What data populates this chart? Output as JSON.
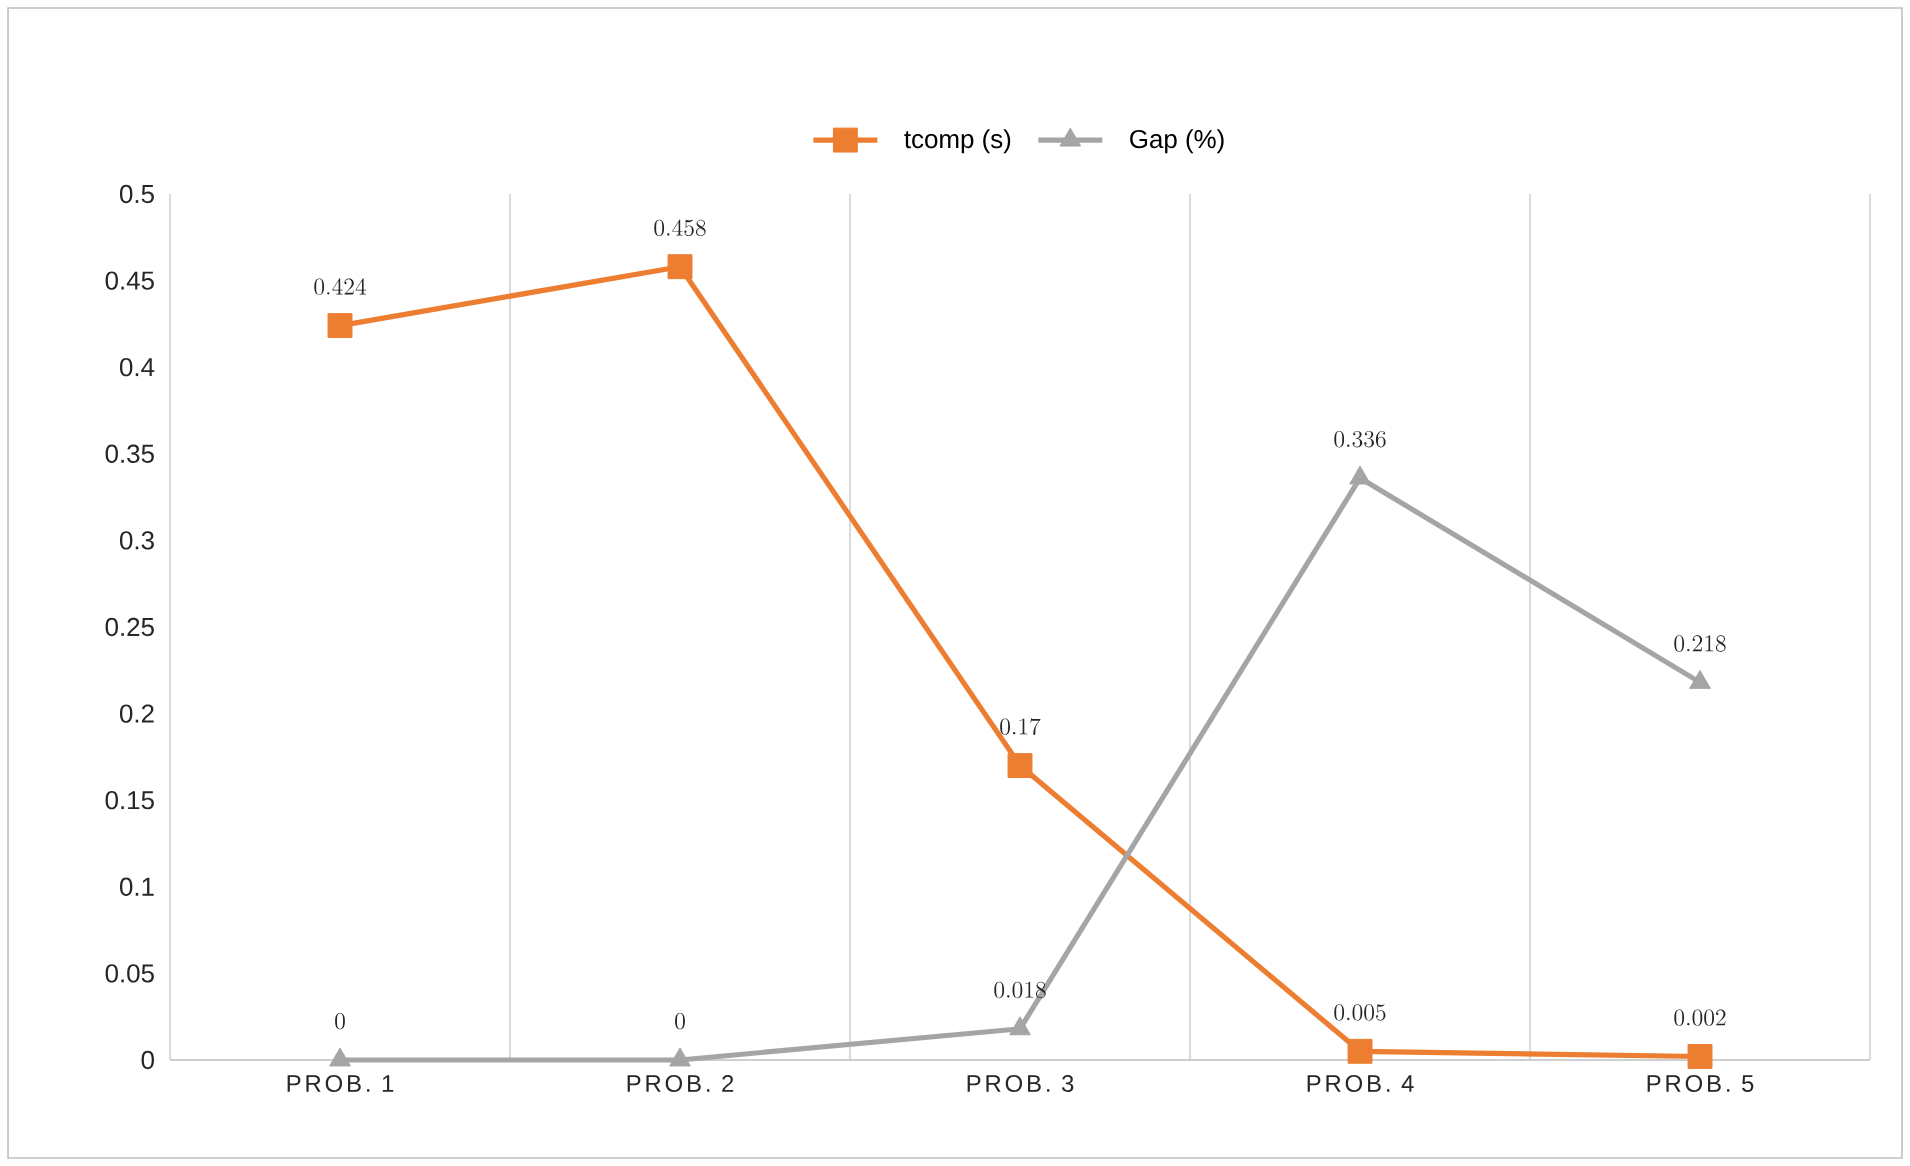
{
  "chart_data": {
    "type": "line",
    "categories": [
      "PROB. 1",
      "PROB. 2",
      "PROB. 3",
      "PROB. 4",
      "PROB. 5"
    ],
    "series": [
      {
        "name": "tcomp (s)",
        "color": "#ed7d31",
        "marker": "square",
        "values": [
          0.424,
          0.458,
          0.17,
          0.005,
          0.002
        ]
      },
      {
        "name": "Gap (%)",
        "color": "#a5a5a5",
        "marker": "triangle",
        "values": [
          0,
          0,
          0.018,
          0.336,
          0.218
        ]
      }
    ],
    "ylim": [
      0,
      0.5
    ],
    "yticks": [
      0,
      0.05,
      0.1,
      0.15,
      0.2,
      0.25,
      0.3,
      0.35,
      0.4,
      0.45,
      0.5
    ],
    "grid": "x",
    "legend": "top",
    "data_labels": true,
    "line_style": "solid"
  }
}
